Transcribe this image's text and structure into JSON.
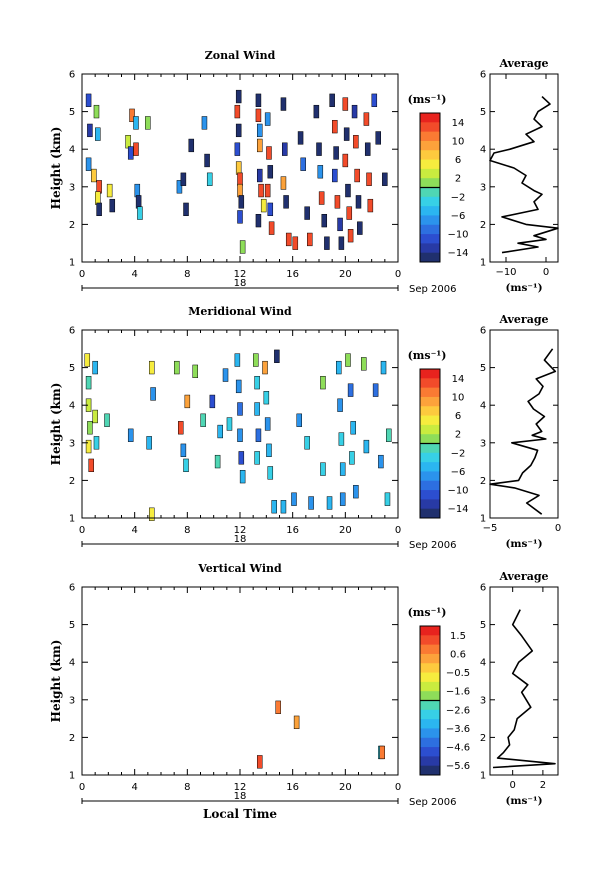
{
  "chart_data": [
    {
      "type": "heatmap",
      "title": "Zonal Wind",
      "ylabel": "Height (km)",
      "colorbar_unit": "(ms⁻¹)",
      "colorbar_labels": [
        "14",
        "10",
        "6",
        "2",
        "−2",
        "−6",
        "−10",
        "−14"
      ],
      "clim": [
        -16,
        16
      ],
      "ylim": [
        1,
        6
      ],
      "yticks": [
        "1",
        "2",
        "3",
        "4",
        "5",
        "6"
      ],
      "xlim": [
        0,
        24
      ],
      "xticks": [
        "0",
        "4",
        "8",
        "12",
        "16",
        "20",
        "0"
      ],
      "day_label": "18",
      "month_label": "Sep 2006",
      "cells": [
        [
          0.5,
          5.3,
          -10
        ],
        [
          0.6,
          4.5,
          -12
        ],
        [
          0.5,
          3.6,
          -6
        ],
        [
          0.9,
          3.3,
          8
        ],
        [
          1.1,
          5.0,
          2
        ],
        [
          1.2,
          4.4,
          -4
        ],
        [
          1.3,
          3.0,
          14
        ],
        [
          1.2,
          2.7,
          6
        ],
        [
          1.3,
          2.4,
          -14
        ],
        [
          2.1,
          2.9,
          6
        ],
        [
          2.3,
          2.5,
          -14
        ],
        [
          3.5,
          4.2,
          4
        ],
        [
          3.7,
          3.9,
          -10
        ],
        [
          3.8,
          4.9,
          12
        ],
        [
          4.1,
          4.7,
          -4
        ],
        [
          4.1,
          4.0,
          14
        ],
        [
          4.2,
          2.9,
          -6
        ],
        [
          4.3,
          2.6,
          -14
        ],
        [
          4.4,
          2.3,
          -2
        ],
        [
          5.0,
          4.7,
          2
        ],
        [
          7.4,
          3.0,
          -6
        ],
        [
          7.7,
          3.2,
          -14
        ],
        [
          7.9,
          2.4,
          -14
        ],
        [
          8.3,
          4.1,
          -14
        ],
        [
          9.3,
          4.7,
          -6
        ],
        [
          9.5,
          3.7,
          -14
        ],
        [
          9.7,
          3.2,
          -2
        ],
        [
          11.8,
          5.0,
          14
        ],
        [
          11.9,
          5.4,
          -14
        ],
        [
          11.9,
          4.5,
          -14
        ],
        [
          11.8,
          4.0,
          -10
        ],
        [
          11.9,
          3.5,
          8
        ],
        [
          12.0,
          3.2,
          14
        ],
        [
          12.0,
          2.9,
          10
        ],
        [
          12.1,
          2.6,
          -14
        ],
        [
          12.0,
          2.2,
          -10
        ],
        [
          12.2,
          1.4,
          2
        ],
        [
          13.4,
          5.3,
          -14
        ],
        [
          13.4,
          4.9,
          14
        ],
        [
          13.5,
          4.5,
          -6
        ],
        [
          13.5,
          4.1,
          10
        ],
        [
          13.5,
          3.3,
          -12
        ],
        [
          13.6,
          2.9,
          14
        ],
        [
          13.4,
          2.1,
          -14
        ],
        [
          13.8,
          2.5,
          6
        ],
        [
          14.1,
          4.8,
          -6
        ],
        [
          14.2,
          3.9,
          14
        ],
        [
          14.3,
          3.4,
          -14
        ],
        [
          14.1,
          2.9,
          14
        ],
        [
          14.3,
          2.4,
          -10
        ],
        [
          14.4,
          1.9,
          14
        ],
        [
          15.3,
          5.2,
          -14
        ],
        [
          15.4,
          4.0,
          -12
        ],
        [
          15.3,
          3.1,
          10
        ],
        [
          15.5,
          2.6,
          -14
        ],
        [
          15.7,
          1.6,
          14
        ],
        [
          16.2,
          1.5,
          14
        ],
        [
          16.6,
          4.3,
          -14
        ],
        [
          16.8,
          3.6,
          -8
        ],
        [
          17.1,
          2.3,
          -14
        ],
        [
          17.3,
          1.6,
          14
        ],
        [
          17.8,
          5.0,
          -14
        ],
        [
          18.0,
          4.0,
          -14
        ],
        [
          18.1,
          3.4,
          -6
        ],
        [
          18.2,
          2.7,
          14
        ],
        [
          18.4,
          2.1,
          -14
        ],
        [
          18.6,
          1.5,
          -14
        ],
        [
          19.0,
          5.3,
          -14
        ],
        [
          19.2,
          4.6,
          14
        ],
        [
          19.3,
          3.9,
          -14
        ],
        [
          19.2,
          3.3,
          -10
        ],
        [
          19.4,
          2.6,
          14
        ],
        [
          19.6,
          2.0,
          -12
        ],
        [
          19.7,
          1.5,
          -14
        ],
        [
          20.0,
          5.2,
          14
        ],
        [
          20.1,
          4.4,
          -14
        ],
        [
          20.0,
          3.7,
          14
        ],
        [
          20.2,
          2.9,
          -14
        ],
        [
          20.3,
          2.3,
          14
        ],
        [
          20.4,
          1.7,
          14
        ],
        [
          20.7,
          5.0,
          -12
        ],
        [
          20.8,
          4.2,
          14
        ],
        [
          20.9,
          3.3,
          14
        ],
        [
          21.0,
          2.6,
          -14
        ],
        [
          21.1,
          1.9,
          -14
        ],
        [
          21.6,
          4.8,
          14
        ],
        [
          21.7,
          4.0,
          -14
        ],
        [
          21.8,
          3.2,
          14
        ],
        [
          21.9,
          2.5,
          14
        ],
        [
          22.2,
          5.3,
          -10
        ],
        [
          22.5,
          4.3,
          -14
        ],
        [
          23.0,
          3.2,
          -14
        ]
      ],
      "profile": {
        "title": "Average",
        "xlabel": "(ms⁻¹)",
        "xlim": [
          -14,
          3
        ],
        "xticks": [
          "−10",
          "0"
        ],
        "x": [
          -1,
          1,
          -2,
          -3,
          -1,
          -5,
          -3,
          -9,
          -13,
          -14,
          -8,
          -5,
          -6,
          -3,
          -1,
          -3,
          -2,
          -11,
          -5,
          3,
          -3,
          0,
          -7,
          -2,
          -11
        ],
        "y": [
          5.4,
          5.2,
          5.0,
          4.8,
          4.6,
          4.4,
          4.2,
          4.0,
          3.9,
          3.7,
          3.5,
          3.3,
          3.1,
          2.9,
          2.8,
          2.6,
          2.4,
          2.2,
          2.0,
          1.9,
          1.7,
          1.6,
          1.5,
          1.4,
          1.25
        ]
      }
    },
    {
      "type": "heatmap",
      "title": "Meridional Wind",
      "ylabel": "Height (km)",
      "colorbar_unit": "(ms⁻¹)",
      "colorbar_labels": [
        "14",
        "10",
        "6",
        "2",
        "−2",
        "−6",
        "−10",
        "−14"
      ],
      "clim": [
        -16,
        16
      ],
      "ylim": [
        1,
        6
      ],
      "yticks": [
        "1",
        "2",
        "3",
        "4",
        "5",
        "6"
      ],
      "xlim": [
        0,
        24
      ],
      "xticks": [
        "0",
        "4",
        "8",
        "12",
        "16",
        "20",
        "0"
      ],
      "day_label": "18",
      "month_label": "Sep 2006",
      "cells": [
        [
          0.4,
          5.2,
          6
        ],
        [
          0.5,
          4.6,
          0
        ],
        [
          0.5,
          4.0,
          4
        ],
        [
          0.6,
          3.4,
          2
        ],
        [
          0.5,
          2.9,
          6
        ],
        [
          0.7,
          2.4,
          14
        ],
        [
          1.0,
          5.0,
          -4
        ],
        [
          1.0,
          3.7,
          4
        ],
        [
          1.1,
          3.0,
          -2
        ],
        [
          1.9,
          3.6,
          0
        ],
        [
          3.7,
          3.2,
          -6
        ],
        [
          5.1,
          3.0,
          -4
        ],
        [
          5.3,
          1.1,
          6
        ],
        [
          5.4,
          4.3,
          -6
        ],
        [
          5.3,
          5.0,
          6
        ],
        [
          7.2,
          5.0,
          2
        ],
        [
          7.5,
          3.4,
          14
        ],
        [
          7.7,
          2.8,
          -6
        ],
        [
          7.9,
          2.4,
          -2
        ],
        [
          8.0,
          4.1,
          10
        ],
        [
          8.6,
          4.9,
          2
        ],
        [
          9.2,
          3.6,
          0
        ],
        [
          9.9,
          4.1,
          -10
        ],
        [
          10.3,
          2.5,
          0
        ],
        [
          10.5,
          3.3,
          -4
        ],
        [
          10.9,
          4.8,
          -6
        ],
        [
          11.2,
          3.5,
          -2
        ],
        [
          11.8,
          5.2,
          -4
        ],
        [
          11.9,
          4.5,
          -6
        ],
        [
          12.0,
          3.9,
          -8
        ],
        [
          12.0,
          3.2,
          -6
        ],
        [
          12.1,
          2.6,
          -10
        ],
        [
          12.2,
          2.1,
          -4
        ],
        [
          13.2,
          5.2,
          2
        ],
        [
          13.3,
          4.6,
          -2
        ],
        [
          13.3,
          3.9,
          -4
        ],
        [
          13.4,
          3.2,
          -8
        ],
        [
          13.3,
          2.6,
          -2
        ],
        [
          13.9,
          5.0,
          10
        ],
        [
          14.0,
          4.2,
          -2
        ],
        [
          14.1,
          3.5,
          -6
        ],
        [
          14.2,
          2.8,
          -4
        ],
        [
          14.3,
          2.2,
          -2
        ],
        [
          14.6,
          1.3,
          -4
        ],
        [
          14.8,
          5.3,
          -14
        ],
        [
          15.3,
          1.3,
          -4
        ],
        [
          16.1,
          1.5,
          -6
        ],
        [
          16.5,
          3.6,
          -6
        ],
        [
          17.1,
          3.0,
          -2
        ],
        [
          17.4,
          1.4,
          -6
        ],
        [
          18.3,
          4.6,
          2
        ],
        [
          18.3,
          2.3,
          -2
        ],
        [
          18.8,
          1.4,
          -4
        ],
        [
          19.5,
          5.0,
          -4
        ],
        [
          19.6,
          4.0,
          -6
        ],
        [
          19.7,
          3.1,
          -2
        ],
        [
          19.8,
          2.3,
          -4
        ],
        [
          19.8,
          1.5,
          -6
        ],
        [
          20.2,
          5.2,
          2
        ],
        [
          20.4,
          4.4,
          -8
        ],
        [
          20.6,
          3.4,
          -4
        ],
        [
          20.5,
          2.6,
          -2
        ],
        [
          20.8,
          1.7,
          -6
        ],
        [
          21.4,
          5.1,
          2
        ],
        [
          21.6,
          2.9,
          -4
        ],
        [
          22.3,
          4.4,
          -8
        ],
        [
          22.7,
          2.5,
          -6
        ],
        [
          22.9,
          5.0,
          -4
        ],
        [
          23.2,
          1.5,
          -2
        ],
        [
          23.3,
          3.2,
          0
        ]
      ],
      "profile": {
        "title": "Average",
        "xlabel": "(ms⁻¹)",
        "xlim": [
          -5,
          0
        ],
        "xticks": [
          "−5",
          "0"
        ],
        "x": [
          -0.4,
          -1.0,
          -0.2,
          -1.6,
          -1.1,
          -1.4,
          -2.2,
          -1.8,
          -1.0,
          -1.6,
          -1.2,
          -1.9,
          -0.9,
          -3.4,
          -1.5,
          -1.7,
          -2.0,
          -2.6,
          -2.9,
          -5.0,
          -3.2,
          -1.4,
          -2.3,
          -1.2
        ],
        "y": [
          5.5,
          5.2,
          4.9,
          4.7,
          4.5,
          4.3,
          4.1,
          3.9,
          3.7,
          3.5,
          3.3,
          3.2,
          3.1,
          3.0,
          2.8,
          2.6,
          2.4,
          2.2,
          2.0,
          1.9,
          1.8,
          1.6,
          1.4,
          1.1
        ]
      }
    },
    {
      "type": "heatmap",
      "title": "Vertical Wind",
      "ylabel": "Height (km)",
      "xlabel": "Local Time",
      "colorbar_unit": "(ms⁻¹)",
      "colorbar_labels": [
        "1.5",
        "0.6",
        "−0.5",
        "−1.6",
        "−2.6",
        "−3.6",
        "−4.6",
        "−5.6"
      ],
      "clim": [
        -6,
        2
      ],
      "ylim": [
        1,
        6
      ],
      "yticks": [
        "1",
        "2",
        "3",
        "4",
        "5",
        "6"
      ],
      "xlim": [
        0,
        24
      ],
      "xticks": [
        "0",
        "4",
        "8",
        "12",
        "16",
        "20",
        "0"
      ],
      "day_label": "18",
      "month_label": "Sep 2006",
      "cells": [
        [
          13.5,
          1.35,
          1.5
        ],
        [
          14.9,
          2.8,
          0.6
        ],
        [
          16.3,
          2.4,
          0.4
        ],
        [
          22.7,
          1.6,
          -2.6
        ],
        [
          22.8,
          1.6,
          0.6
        ]
      ],
      "profile": {
        "title": "Average",
        "xlabel": "(ms⁻¹)",
        "xlim": [
          -1.5,
          3
        ],
        "xticks": [
          "0",
          "2"
        ],
        "x": [
          0.5,
          0.0,
          0.6,
          1.3,
          0.4,
          0.0,
          1.0,
          0.6,
          1.2,
          0.3,
          0.1,
          -0.3,
          -0.2,
          -0.6,
          -1.0,
          2.8,
          -1.3
        ],
        "y": [
          5.4,
          5.0,
          4.7,
          4.3,
          4.0,
          3.7,
          3.4,
          3.2,
          2.8,
          2.5,
          2.2,
          2.0,
          1.8,
          1.6,
          1.45,
          1.3,
          1.2
        ]
      }
    }
  ]
}
